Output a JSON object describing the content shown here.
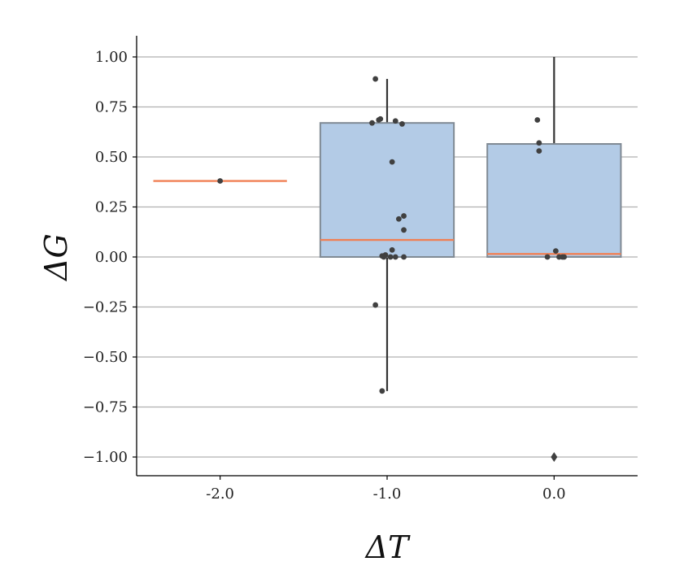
{
  "chart_data": {
    "type": "box",
    "xlabel": "ΔT",
    "ylabel": "ΔG",
    "categories": [
      "-2.0",
      "-1.0",
      "0.0"
    ],
    "ylim": [
      -1.1,
      1.1
    ],
    "yticks": [
      {
        "value": 1.0,
        "label": "1.00"
      },
      {
        "value": 0.75,
        "label": "0.75"
      },
      {
        "value": 0.5,
        "label": "0.50"
      },
      {
        "value": 0.25,
        "label": "0.25"
      },
      {
        "value": 0.0,
        "label": "0.00"
      },
      {
        "value": -0.25,
        "label": "−0.25"
      },
      {
        "value": -0.5,
        "label": "−0.50"
      },
      {
        "value": -0.75,
        "label": "−0.75"
      },
      {
        "value": -1.0,
        "label": "−1.00"
      }
    ],
    "grid": "horizontal",
    "colors": {
      "box_fill": "#b3cbe6",
      "box_edge": "#808a94",
      "median": "#f08055",
      "points": "#404040",
      "whisker": "#333333",
      "grid": "#b0b0b0"
    },
    "boxes": [
      {
        "category": "-2.0",
        "q1": 0.38,
        "median": 0.38,
        "q3": 0.38,
        "whisker_low": 0.38,
        "whisker_high": 0.38,
        "outliers": []
      },
      {
        "category": "-1.0",
        "q1": 0.0,
        "median": 0.085,
        "q3": 0.67,
        "whisker_low": -0.67,
        "whisker_high": 0.89,
        "outliers": []
      },
      {
        "category": "0.0",
        "q1": 0.0,
        "median": 0.015,
        "q3": 0.565,
        "whisker_low": 0.0,
        "whisker_high": 1.0,
        "outliers": [
          -1.0
        ]
      }
    ],
    "points": [
      {
        "category": "-2.0",
        "y": 0.38,
        "dx": 0.0
      },
      {
        "category": "-1.0",
        "y": 0.89,
        "dx": -0.07
      },
      {
        "category": "-1.0",
        "y": 0.69,
        "dx": -0.04
      },
      {
        "category": "-1.0",
        "y": 0.685,
        "dx": -0.05
      },
      {
        "category": "-1.0",
        "y": 0.67,
        "dx": -0.09
      },
      {
        "category": "-1.0",
        "y": 0.68,
        "dx": 0.05
      },
      {
        "category": "-1.0",
        "y": 0.665,
        "dx": 0.09
      },
      {
        "category": "-1.0",
        "y": 0.475,
        "dx": 0.03
      },
      {
        "category": "-1.0",
        "y": 0.205,
        "dx": 0.1
      },
      {
        "category": "-1.0",
        "y": 0.19,
        "dx": 0.07
      },
      {
        "category": "-1.0",
        "y": 0.135,
        "dx": 0.1
      },
      {
        "category": "-1.0",
        "y": 0.035,
        "dx": 0.03
      },
      {
        "category": "-1.0",
        "y": 0.01,
        "dx": -0.01
      },
      {
        "category": "-1.0",
        "y": 0.005,
        "dx": -0.03
      },
      {
        "category": "-1.0",
        "y": 0.0,
        "dx": -0.02
      },
      {
        "category": "-1.0",
        "y": 0.0,
        "dx": 0.02
      },
      {
        "category": "-1.0",
        "y": 0.0,
        "dx": 0.05
      },
      {
        "category": "-1.0",
        "y": 0.0,
        "dx": 0.1
      },
      {
        "category": "-1.0",
        "y": -0.24,
        "dx": -0.07
      },
      {
        "category": "-1.0",
        "y": -0.67,
        "dx": -0.03
      },
      {
        "category": "0.0",
        "y": 0.685,
        "dx": -0.1
      },
      {
        "category": "0.0",
        "y": 0.57,
        "dx": -0.09
      },
      {
        "category": "0.0",
        "y": 0.53,
        "dx": -0.09
      },
      {
        "category": "0.0",
        "y": 0.03,
        "dx": 0.01
      },
      {
        "category": "0.0",
        "y": 0.0,
        "dx": -0.04
      },
      {
        "category": "0.0",
        "y": 0.0,
        "dx": 0.03
      },
      {
        "category": "0.0",
        "y": 0.0,
        "dx": 0.05
      },
      {
        "category": "0.0",
        "y": 0.0,
        "dx": 0.06
      }
    ]
  }
}
